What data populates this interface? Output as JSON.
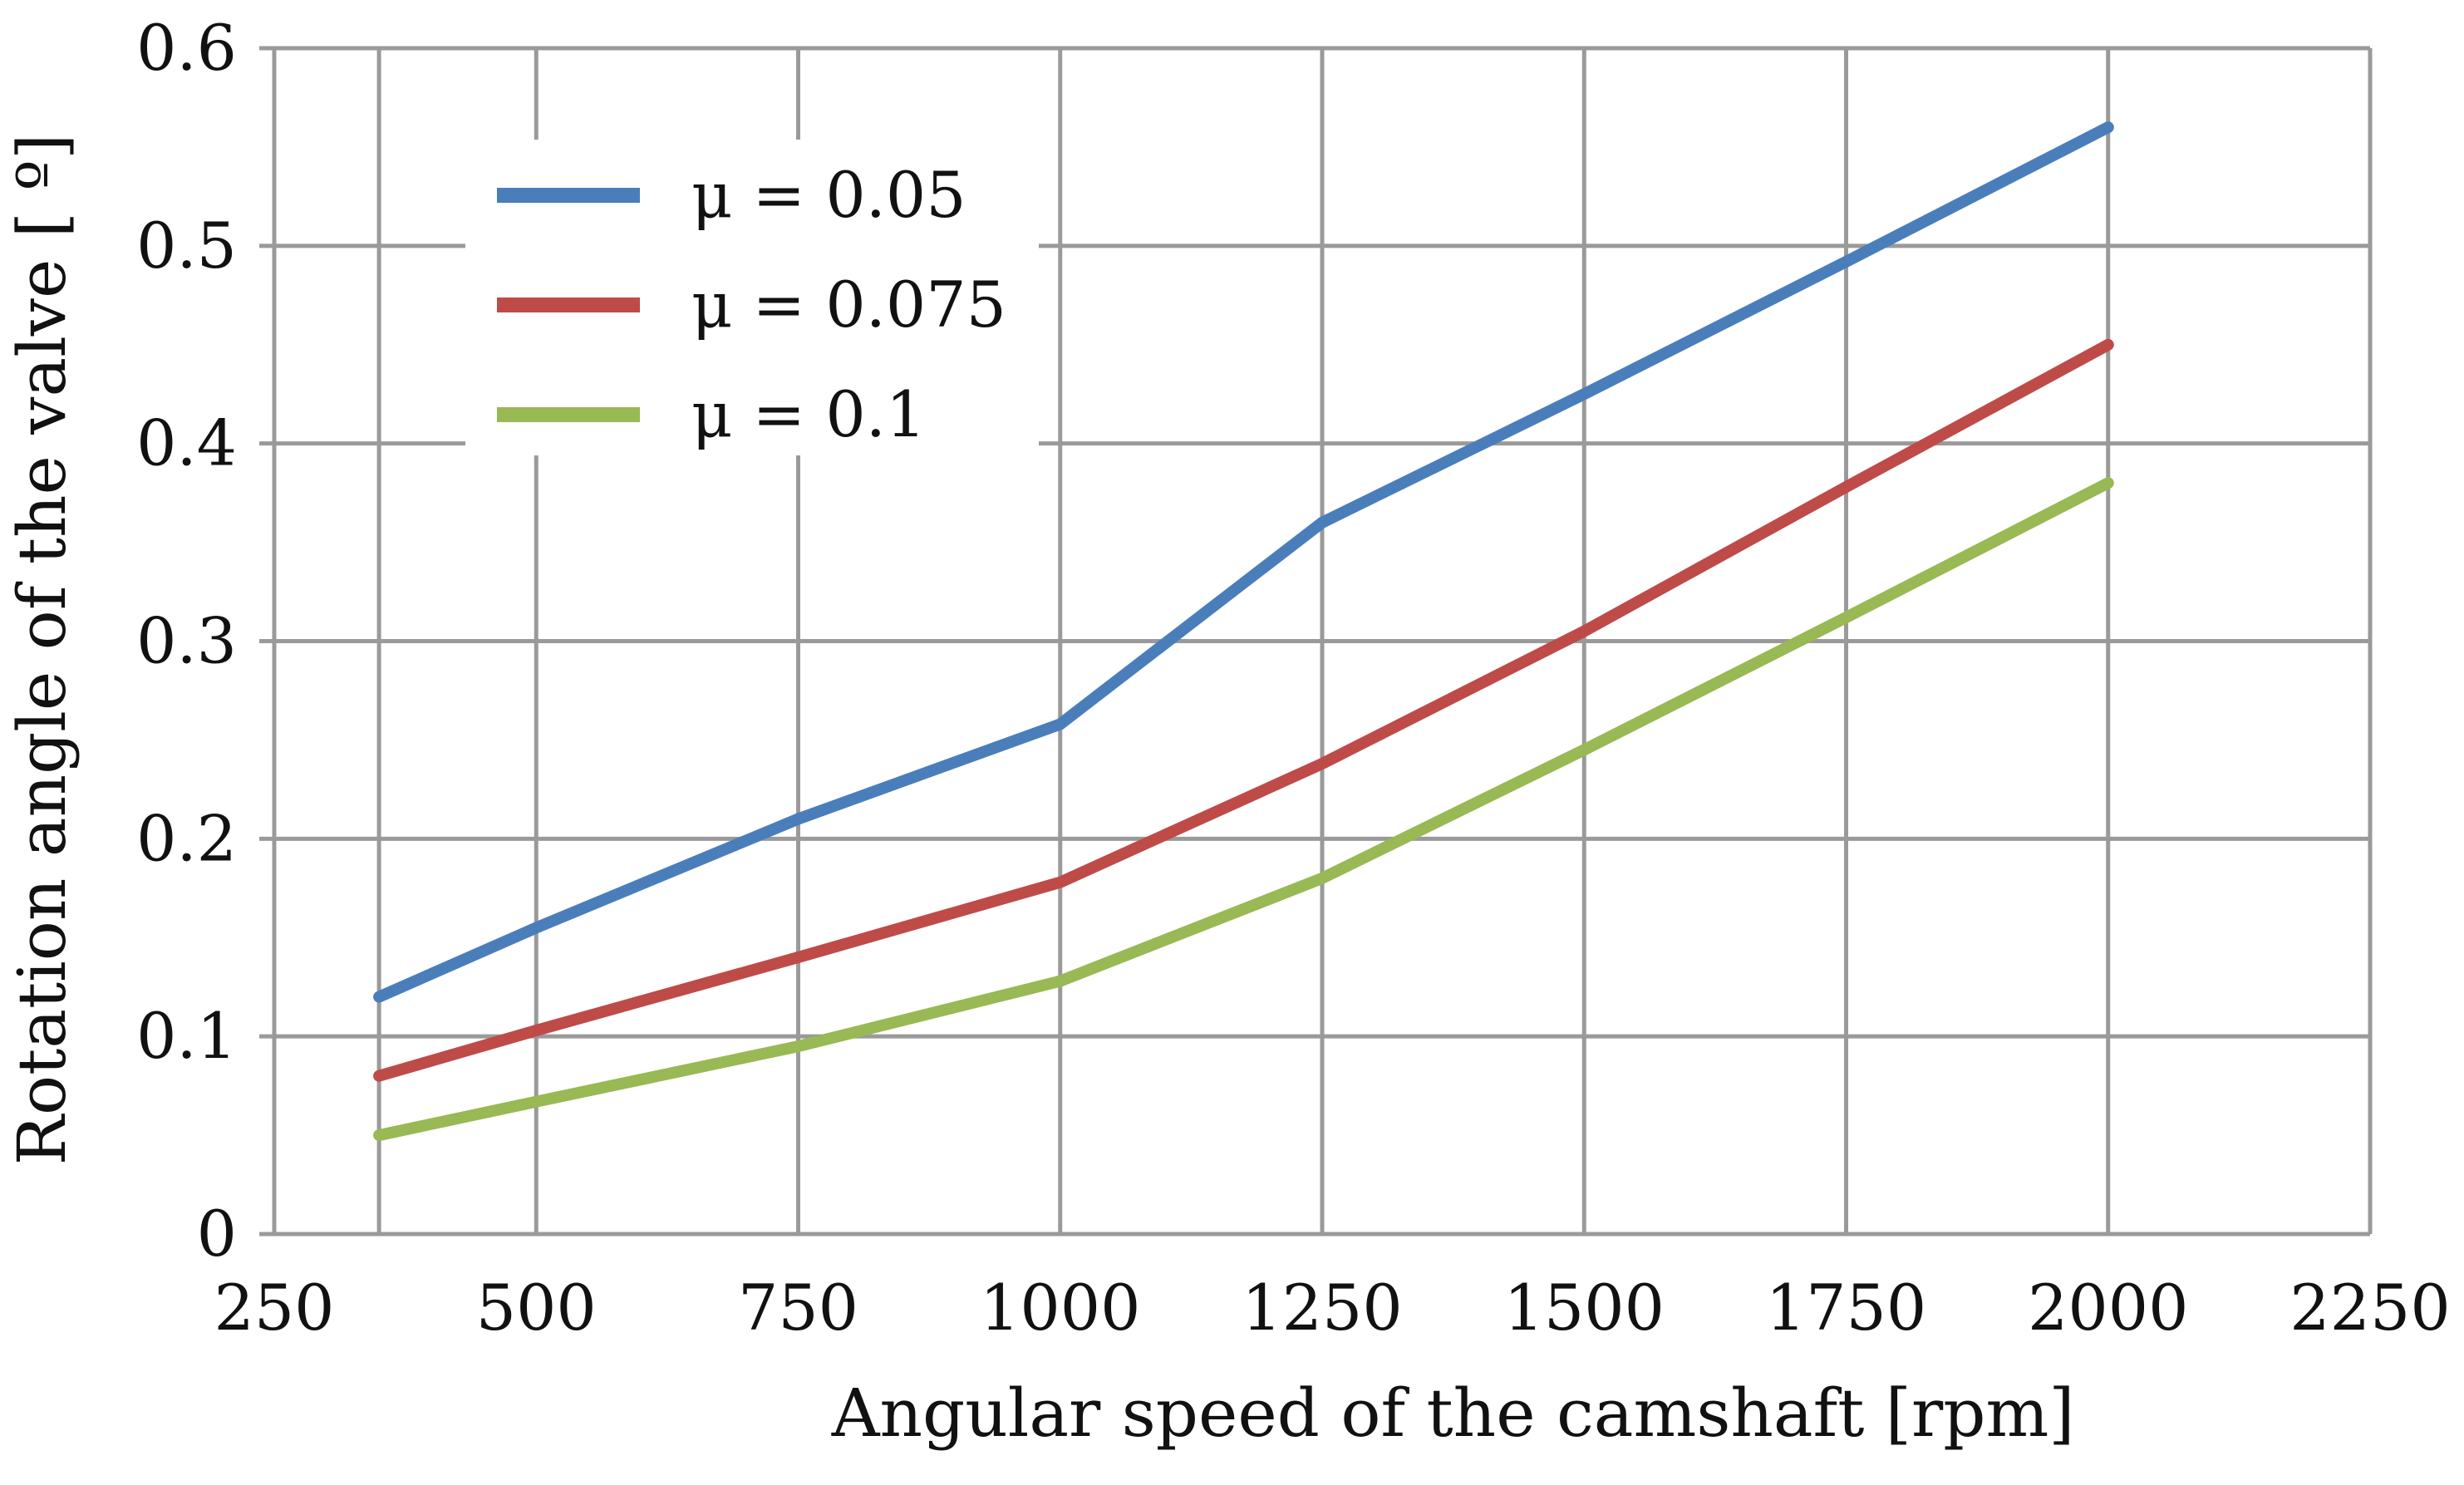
{
  "chart_data": {
    "type": "line",
    "title": "",
    "xlabel": "Angular speed of the camshaft [rpm]",
    "ylabel": "Rotation angle of the valve  [ º]",
    "xlim": [
      250,
      2250
    ],
    "ylim": [
      0,
      0.6
    ],
    "grid": true,
    "legend_position": "top-left",
    "xticks": [
      {
        "value": 250,
        "label": "250"
      },
      {
        "value": 500,
        "label": "500"
      },
      {
        "value": 750,
        "label": "750"
      },
      {
        "value": 1000,
        "label": "1000"
      },
      {
        "value": 1250,
        "label": "1250"
      },
      {
        "value": 1500,
        "label": "1500"
      },
      {
        "value": 1750,
        "label": "1750"
      },
      {
        "value": 2000,
        "label": "2000"
      },
      {
        "value": 2250,
        "label": "2250"
      }
    ],
    "yticks": [
      {
        "value": 0,
        "label": "0"
      },
      {
        "value": 0.1,
        "label": "0.1"
      },
      {
        "value": 0.2,
        "label": "0.2"
      },
      {
        "value": 0.3,
        "label": "0.3"
      },
      {
        "value": 0.4,
        "label": "0.4"
      },
      {
        "value": 0.5,
        "label": "0.5"
      },
      {
        "value": 0.6,
        "label": "0.6"
      }
    ],
    "x": [
      350,
      500,
      750,
      1000,
      1250,
      1500,
      1750,
      2000
    ],
    "series": [
      {
        "name": "μ = 0.05",
        "color": "#4a7ebb",
        "values": [
          0.12,
          0.155,
          0.21,
          0.258,
          0.36,
          0.425,
          0.492,
          0.56
        ]
      },
      {
        "name": "μ = 0.075",
        "color": "#be4b48",
        "values": [
          0.08,
          0.103,
          0.14,
          0.178,
          0.238,
          0.305,
          0.378,
          0.45
        ]
      },
      {
        "name": "μ = 0.1",
        "color": "#98b954",
        "values": [
          0.05,
          0.067,
          0.095,
          0.128,
          0.18,
          0.245,
          0.312,
          0.38
        ]
      }
    ]
  }
}
